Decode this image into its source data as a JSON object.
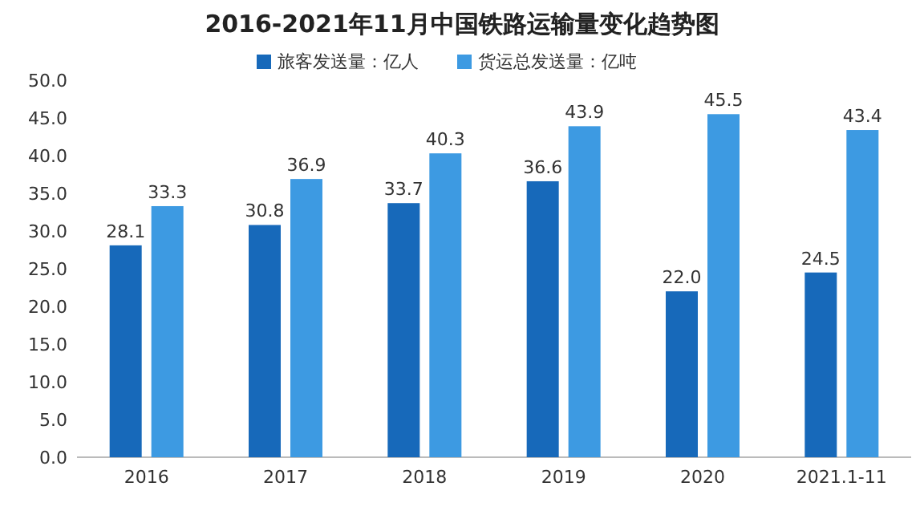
{
  "chart_data": {
    "type": "bar",
    "title": "2016-2021年11月中国铁路运输量变化趋势图",
    "categories": [
      "2016",
      "2017",
      "2018",
      "2019",
      "2020",
      "2021.1-11"
    ],
    "series": [
      {
        "name": "旅客发送量：亿人",
        "color": "#1769ba",
        "values": [
          28.1,
          30.8,
          33.7,
          36.6,
          22.0,
          24.5
        ],
        "value_labels": [
          "28.1",
          "30.8",
          "33.7",
          "36.6",
          "22.0",
          "24.5"
        ]
      },
      {
        "name": "货运总发送量：亿吨",
        "color": "#3d9ae2",
        "values": [
          33.3,
          36.9,
          40.3,
          43.9,
          45.5,
          43.4
        ],
        "value_labels": [
          "33.3",
          "36.9",
          "40.3",
          "43.9",
          "45.5",
          "43.4"
        ]
      }
    ],
    "ylim": [
      0,
      50
    ],
    "yticks": [
      {
        "value": 0,
        "label": "0.0"
      },
      {
        "value": 5,
        "label": "5.0"
      },
      {
        "value": 10,
        "label": "10.0"
      },
      {
        "value": 15,
        "label": "15.0"
      },
      {
        "value": 20,
        "label": "20.0"
      },
      {
        "value": 25,
        "label": "25.0"
      },
      {
        "value": 30,
        "label": "30.0"
      },
      {
        "value": 35,
        "label": "35.0"
      },
      {
        "value": 40,
        "label": "40.0"
      },
      {
        "value": 45,
        "label": "45.0"
      },
      {
        "value": 50,
        "label": "50.0"
      }
    ],
    "legend": "top",
    "grid": false
  }
}
